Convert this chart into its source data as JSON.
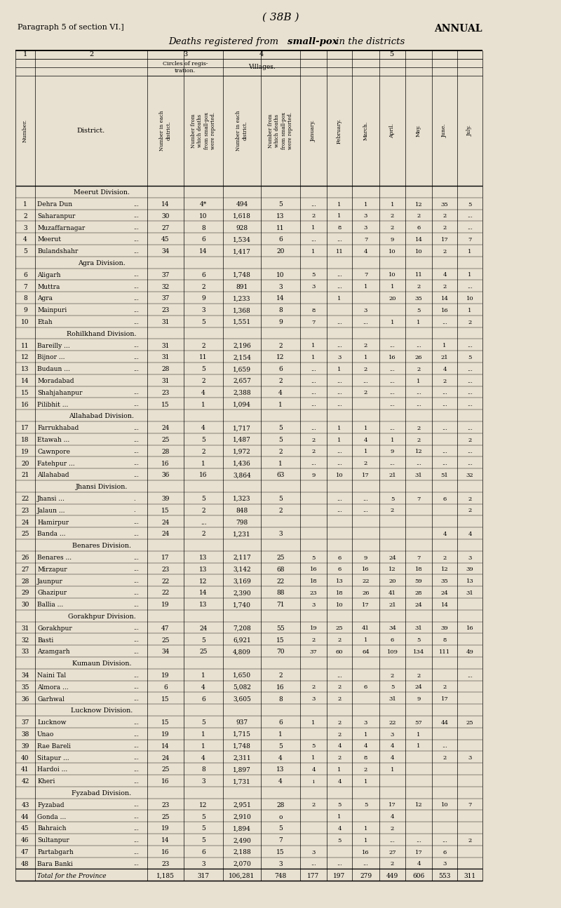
{
  "bg_color": "#e8e0d0",
  "title_center": "( 38B )",
  "title_left": "Paragraph 5 of section VI.]",
  "title_right": "ANNUAL",
  "subtitle_plain": "Deaths registered from ",
  "subtitle_bold": "small-pox",
  "subtitle_end": " in the districts",
  "month_names": [
    "January.",
    "February.",
    "March.",
    "April.",
    "May.",
    "June.",
    "July."
  ],
  "month_cols": [
    "jan",
    "feb",
    "mar",
    "apr",
    "may",
    "jun",
    "jul"
  ],
  "divisions": [
    {
      "name": "Meerut Division.",
      "rows": [
        [
          1,
          "Dehra Dun",
          "...",
          14,
          "4*",
          494,
          5,
          "...",
          1,
          1,
          1,
          12,
          35,
          5
        ],
        [
          2,
          "Saharanpur",
          "...",
          30,
          10,
          1618,
          13,
          2,
          1,
          3,
          2,
          2,
          2,
          "..."
        ],
        [
          3,
          "Muzaffarnagar",
          "...",
          27,
          8,
          928,
          11,
          1,
          8,
          3,
          2,
          6,
          2,
          "..."
        ],
        [
          4,
          "Meerut",
          "...",
          45,
          6,
          1534,
          6,
          "...",
          "...",
          7,
          9,
          14,
          17,
          7
        ],
        [
          5,
          "Bulandshahr",
          "...",
          34,
          14,
          1417,
          20,
          1,
          11,
          4,
          10,
          10,
          2,
          1
        ]
      ]
    },
    {
      "name": "Agra Division.",
      "rows": [
        [
          6,
          "Aligarh",
          "...",
          37,
          6,
          1748,
          10,
          5,
          "...",
          7,
          10,
          11,
          4,
          1
        ],
        [
          7,
          "Muttra",
          "...",
          32,
          2,
          891,
          3,
          3,
          "...",
          "1",
          1,
          2,
          2,
          "..."
        ],
        [
          8,
          "Agra",
          "...",
          37,
          9,
          1233,
          14,
          "",
          1,
          "",
          20,
          35,
          14,
          10
        ],
        [
          9,
          "Mainpuri",
          "...",
          23,
          3,
          1368,
          8,
          8,
          "",
          3,
          "",
          5,
          16,
          1
        ],
        [
          10,
          "Etah",
          "...",
          31,
          5,
          1551,
          9,
          7,
          "...",
          "...",
          1,
          1,
          "...",
          2
        ]
      ]
    },
    {
      "name": "Rohilkhand Division.",
      "rows": [
        [
          11,
          "Bareilly ...",
          "...",
          31,
          2,
          2196,
          2,
          1,
          "...",
          2,
          "...",
          "...",
          1,
          "..."
        ],
        [
          12,
          "Bijnor ...",
          "...",
          31,
          11,
          2154,
          12,
          1,
          3,
          1,
          16,
          26,
          21,
          5
        ],
        [
          13,
          "Budaun ...",
          "...",
          28,
          5,
          1659,
          6,
          "...",
          1,
          2,
          "...",
          2,
          4,
          "..."
        ],
        [
          14,
          "Moradabad",
          "",
          31,
          2,
          2657,
          2,
          "...",
          "...",
          "...",
          "...",
          1,
          2,
          "..."
        ],
        [
          15,
          "Shahjahanpur",
          "...",
          23,
          4,
          2388,
          4,
          "...",
          "...",
          2,
          "...",
          "...",
          "...",
          "..."
        ],
        [
          16,
          "Pilibhit ...",
          "...",
          15,
          1,
          1094,
          1,
          "...",
          "...",
          "",
          "...",
          "...",
          "...",
          "..."
        ]
      ]
    },
    {
      "name": "Allahabad Division.",
      "rows": [
        [
          17,
          "Farrukhabad",
          "...",
          24,
          4,
          1717,
          5,
          "...",
          1,
          1,
          "...",
          2,
          "...",
          "..."
        ],
        [
          18,
          "Etawah ...",
          "...",
          25,
          5,
          1487,
          5,
          2,
          1,
          4,
          "1",
          2,
          "",
          2
        ],
        [
          19,
          "Cawnpore",
          "...",
          28,
          2,
          1972,
          2,
          2,
          "...",
          1,
          9,
          12,
          "...",
          "..."
        ],
        [
          20,
          "Fatehpur ...",
          "...",
          16,
          1,
          1436,
          1,
          "...",
          "...",
          2,
          "...",
          "...",
          "...",
          "..."
        ],
        [
          21,
          "Allahabad",
          "...",
          36,
          16,
          3864,
          63,
          9,
          10,
          17,
          21,
          31,
          51,
          32
        ]
      ]
    },
    {
      "name": "Jhansi Division.",
      "rows": [
        [
          22,
          "Jhansi ...",
          ".",
          39,
          5,
          1323,
          5,
          "",
          "...",
          "...",
          5,
          7,
          6,
          2
        ],
        [
          23,
          "Jalaun ...",
          ".",
          15,
          2,
          848,
          2,
          "",
          "...",
          "...",
          2,
          "",
          "",
          2
        ],
        [
          24,
          "Hamirpur",
          "...",
          24,
          "...",
          798,
          "",
          "",
          "",
          "",
          "",
          "",
          "",
          ""
        ],
        [
          25,
          "Banda ...",
          "...",
          24,
          2,
          1231,
          3,
          "",
          "",
          "",
          "",
          "",
          4,
          4
        ]
      ]
    },
    {
      "name": "Benares Division.",
      "rows": [
        [
          26,
          "Benares ...",
          "...",
          17,
          13,
          2117,
          25,
          5,
          6,
          9,
          24,
          7,
          2,
          3
        ],
        [
          27,
          "Mirzapur",
          "...",
          23,
          13,
          3142,
          68,
          16,
          6,
          16,
          12,
          18,
          12,
          39
        ],
        [
          28,
          "Jaunpur",
          "...",
          22,
          12,
          3169,
          22,
          18,
          13,
          22,
          20,
          59,
          35,
          13
        ],
        [
          29,
          "Ghazipur",
          "...",
          22,
          14,
          2390,
          88,
          23,
          18,
          26,
          41,
          28,
          24,
          31
        ],
        [
          30,
          "Ballia ...",
          "...",
          19,
          13,
          1740,
          71,
          3,
          10,
          17,
          21,
          24,
          14,
          ""
        ]
      ]
    },
    {
      "name": "Gorakhpur Division.",
      "rows": [
        [
          31,
          "Gorakhpur",
          "...",
          47,
          24,
          7208,
          55,
          19,
          25,
          41,
          34,
          31,
          39,
          "16"
        ],
        [
          32,
          "Basti",
          "...",
          25,
          5,
          6921,
          15,
          2,
          2,
          1,
          6,
          5,
          8,
          ""
        ],
        [
          33,
          "Azamgarh",
          "...",
          34,
          25,
          4809,
          70,
          37,
          60,
          64,
          109,
          134,
          111,
          49
        ]
      ]
    },
    {
      "name": "Kumaun Division.",
      "rows": [
        [
          34,
          "Naini Tal",
          "...",
          19,
          1,
          1650,
          2,
          "",
          "...",
          "",
          2,
          2,
          "",
          "..."
        ],
        [
          35,
          "Almora ...",
          "...",
          6,
          4,
          5082,
          16,
          2,
          2,
          6,
          5,
          24,
          2,
          ""
        ],
        [
          36,
          "Garhwal",
          "...",
          15,
          6,
          3605,
          8,
          3,
          2,
          "",
          31,
          9,
          17,
          ""
        ]
      ]
    },
    {
      "name": "Lucknow Division.",
      "rows": [
        [
          37,
          "Lucknow",
          "...",
          15,
          5,
          937,
          6,
          1,
          2,
          3,
          22,
          57,
          44,
          25
        ],
        [
          38,
          "Unao",
          "...",
          19,
          1,
          1715,
          1,
          "",
          2,
          1,
          3,
          1,
          "",
          ""
        ],
        [
          39,
          "Rae Bareli",
          "...",
          14,
          1,
          1748,
          5,
          5,
          4,
          4,
          "4",
          1,
          "...",
          ""
        ],
        [
          40,
          "Sitapur ...",
          "...",
          24,
          4,
          2311,
          4,
          1,
          2,
          8,
          4,
          "",
          2,
          3
        ],
        [
          41,
          "Hardoi ...",
          "...",
          25,
          8,
          1897,
          13,
          4,
          1,
          2,
          1,
          "",
          "",
          ""
        ],
        [
          42,
          "Kheri",
          "...",
          16,
          3,
          1731,
          4,
          "i",
          4,
          1,
          "",
          "",
          "",
          ""
        ]
      ]
    },
    {
      "name": "Fyzabad Division.",
      "rows": [
        [
          43,
          "Fyzabad",
          "...",
          23,
          12,
          2951,
          28,
          2,
          5,
          5,
          17,
          12,
          10,
          7
        ],
        [
          44,
          "Gonda ...",
          "...",
          25,
          5,
          2910,
          "o",
          "",
          1,
          "",
          4,
          "",
          "",
          ""
        ],
        [
          45,
          "Bahraich",
          "...",
          19,
          5,
          1894,
          5,
          "",
          4,
          1,
          2,
          "",
          "",
          ""
        ],
        [
          46,
          "Sultanpur",
          "...",
          14,
          5,
          2490,
          7,
          "",
          5,
          1,
          "...",
          "...",
          "...",
          2
        ],
        [
          47,
          "Partabgarh",
          "...",
          16,
          6,
          2188,
          15,
          3,
          "",
          16,
          27,
          17,
          6,
          ""
        ],
        [
          48,
          "Bara Banki",
          "...",
          23,
          3,
          2070,
          3,
          "...",
          "...",
          "...",
          2,
          4,
          3,
          ""
        ]
      ]
    }
  ],
  "totals": [
    1185,
    317,
    106281,
    748,
    177,
    197,
    279,
    449,
    606,
    553,
    311
  ],
  "col_x": {
    "col1_l": 22,
    "col1_r": 50,
    "col2_l": 50,
    "col2_r": 210,
    "col3a_l": 210,
    "col3a_r": 262,
    "col3b_l": 262,
    "col3b_r": 318,
    "col4a_l": 318,
    "col4a_r": 372,
    "col4b_l": 372,
    "col4b_r": 428,
    "jan_l": 428,
    "jan_r": 466,
    "feb_l": 466,
    "feb_r": 502,
    "mar_l": 502,
    "mar_r": 541,
    "apr_l": 541,
    "apr_r": 578,
    "may_l": 578,
    "may_r": 616,
    "jun_l": 616,
    "jun_r": 652,
    "jul_l": 652,
    "jul_r": 688
  }
}
